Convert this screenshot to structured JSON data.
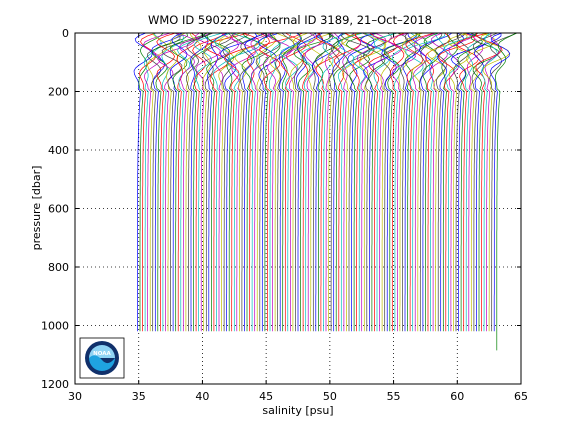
{
  "chart_data": {
    "type": "line",
    "title": "WMO ID 5902227, internal ID 3189, 21–Oct–2018",
    "xlabel": "salinity [psu]",
    "ylabel": "pressure [dbar]",
    "xlim": [
      30,
      65
    ],
    "ylim": [
      1200,
      0
    ],
    "y_reversed": true,
    "grid": "dotted",
    "x_ticks": [
      "30",
      "35",
      "40",
      "45",
      "50",
      "55",
      "60",
      "65"
    ],
    "y_ticks": [
      "0",
      "200",
      "400",
      "600",
      "800",
      "1000",
      "1200"
    ],
    "offset_profiles": {
      "count": 142,
      "first_deep_salinity": 34.9,
      "last_deep_salinity": 63.1,
      "pressure_top": 0,
      "pressure_bottom": 1020,
      "shallow_wiggle_depth": 200,
      "max_pressure_extended": 1085
    },
    "series_colors": [
      "#0000ff",
      "#008000",
      "#ff0000",
      "#00bfbf",
      "#bf00bf",
      "#bfbf00",
      "#404040"
    ],
    "logo": {
      "icon": "noaa-logo-icon",
      "text": "NOAA",
      "colors": {
        "dark": "#10306b",
        "light": "#1fa3e0",
        "sky": "#8fd3f4"
      }
    }
  }
}
